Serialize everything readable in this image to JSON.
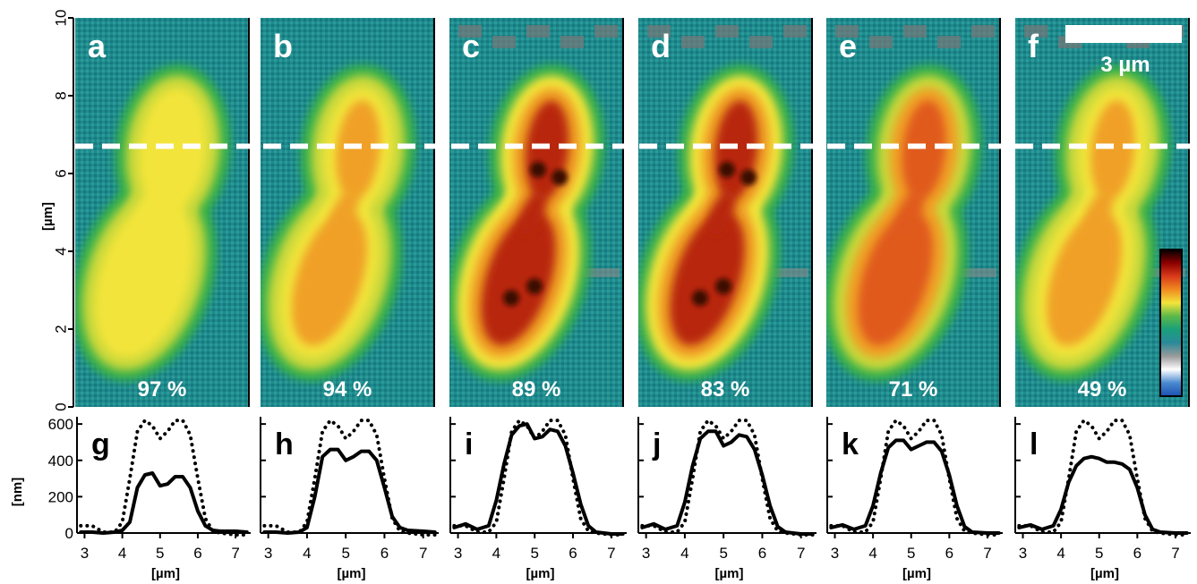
{
  "figure": {
    "image_axis": {
      "label": "[µm]",
      "ticks": [
        "0",
        "2",
        "4",
        "6",
        "8",
        "10"
      ],
      "ylim": [
        0,
        10
      ]
    },
    "profile_axis": {
      "ylabel": "[nm]",
      "yticks": [
        "0",
        "200",
        "400",
        "600"
      ],
      "ylim": [
        0,
        640
      ],
      "xlabel": "[µm]",
      "xticks": [
        "3",
        "4",
        "5",
        "6",
        "7"
      ],
      "xlim": [
        2.8,
        7.4
      ]
    },
    "scale_bar_label": "3 µm",
    "cut_line_y_um": 6.7,
    "colorbar": {
      "colors": [
        "#000000",
        "#8b0000",
        "#d83a1a",
        "#f08a20",
        "#f2e43a",
        "#5bb84a",
        "#1aa07a",
        "#2a8a9a",
        "#9a9a9a",
        "#ffffff",
        "#4a8ad0",
        "#1a50b0"
      ]
    }
  },
  "panels": [
    {
      "letter": "a",
      "percent": "97 %",
      "intensity": 0.25
    },
    {
      "letter": "b",
      "percent": "94 %",
      "intensity": 0.45
    },
    {
      "letter": "c",
      "percent": "89 %",
      "intensity": 1.0
    },
    {
      "letter": "d",
      "percent": "83 %",
      "intensity": 0.9
    },
    {
      "letter": "e",
      "percent": "71 %",
      "intensity": 0.7
    },
    {
      "letter": "f",
      "percent": "49 %",
      "intensity": 0.35
    }
  ],
  "chart_data": [
    {
      "type": "line",
      "letter": "g",
      "xlabel": "[µm]",
      "ylabel": "[nm]",
      "xlim": [
        2.8,
        7.4
      ],
      "ylim": [
        0,
        640
      ],
      "series": [
        {
          "style": "dotted",
          "x": [
            2.9,
            3.2,
            3.5,
            3.8,
            4.0,
            4.2,
            4.4,
            4.6,
            4.8,
            5.0,
            5.2,
            5.4,
            5.6,
            5.8,
            6.0,
            6.2,
            6.4,
            6.6,
            7.0,
            7.3
          ],
          "y": [
            40,
            40,
            5,
            5,
            60,
            300,
            560,
            620,
            590,
            520,
            560,
            620,
            620,
            540,
            300,
            80,
            10,
            0,
            -10,
            -10
          ]
        },
        {
          "style": "solid",
          "x": [
            2.9,
            3.2,
            3.5,
            3.8,
            4.0,
            4.2,
            4.4,
            4.6,
            4.8,
            5.0,
            5.2,
            5.4,
            5.6,
            5.8,
            6.0,
            6.2,
            6.4,
            6.6,
            7.0,
            7.3
          ],
          "y": [
            5,
            5,
            0,
            5,
            15,
            60,
            250,
            320,
            330,
            260,
            270,
            310,
            310,
            250,
            120,
            40,
            15,
            10,
            10,
            5
          ]
        }
      ]
    },
    {
      "type": "line",
      "letter": "h",
      "xlabel": "[µm]",
      "ylabel": "[nm]",
      "xlim": [
        2.8,
        7.4
      ],
      "ylim": [
        0,
        640
      ],
      "series": [
        {
          "style": "dotted",
          "x": [
            2.9,
            3.2,
            3.5,
            3.8,
            4.0,
            4.2,
            4.4,
            4.6,
            4.8,
            5.0,
            5.2,
            5.4,
            5.6,
            5.8,
            6.0,
            6.2,
            6.4,
            6.6,
            7.0,
            7.3
          ],
          "y": [
            40,
            40,
            5,
            5,
            60,
            300,
            560,
            620,
            590,
            520,
            560,
            620,
            620,
            540,
            300,
            80,
            10,
            0,
            -10,
            -10
          ]
        },
        {
          "style": "solid",
          "x": [
            2.9,
            3.2,
            3.5,
            3.8,
            4.0,
            4.2,
            4.4,
            4.6,
            4.8,
            5.0,
            5.2,
            5.4,
            5.6,
            5.8,
            6.0,
            6.2,
            6.4,
            6.6,
            7.0,
            7.3
          ],
          "y": [
            5,
            5,
            0,
            5,
            30,
            200,
            420,
            460,
            460,
            400,
            420,
            450,
            450,
            400,
            250,
            90,
            30,
            15,
            10,
            5
          ]
        }
      ]
    },
    {
      "type": "line",
      "letter": "i",
      "xlabel": "[µm]",
      "ylabel": "[nm]",
      "xlim": [
        2.8,
        7.4
      ],
      "ylim": [
        0,
        640
      ],
      "series": [
        {
          "style": "dotted",
          "x": [
            2.9,
            3.2,
            3.5,
            3.8,
            4.0,
            4.2,
            4.4,
            4.6,
            4.8,
            5.0,
            5.2,
            5.4,
            5.6,
            5.8,
            6.0,
            6.2,
            6.4,
            6.6,
            7.0,
            7.3
          ],
          "y": [
            40,
            40,
            5,
            5,
            60,
            300,
            560,
            620,
            590,
            520,
            560,
            620,
            620,
            540,
            300,
            80,
            10,
            0,
            -10,
            -10
          ]
        },
        {
          "style": "solid",
          "x": [
            2.9,
            3.2,
            3.5,
            3.8,
            4.0,
            4.2,
            4.4,
            4.6,
            4.8,
            5.0,
            5.2,
            5.4,
            5.6,
            5.8,
            6.0,
            6.2,
            6.4,
            6.6,
            7.0,
            7.3
          ],
          "y": [
            30,
            50,
            20,
            40,
            180,
            380,
            540,
            590,
            600,
            520,
            530,
            570,
            560,
            480,
            330,
            160,
            40,
            5,
            -5,
            -5
          ]
        }
      ]
    },
    {
      "type": "line",
      "letter": "j",
      "xlabel": "[µm]",
      "ylabel": "[nm]",
      "xlim": [
        2.8,
        7.4
      ],
      "ylim": [
        0,
        640
      ],
      "series": [
        {
          "style": "dotted",
          "x": [
            2.9,
            3.2,
            3.5,
            3.8,
            4.0,
            4.2,
            4.4,
            4.6,
            4.8,
            5.0,
            5.2,
            5.4,
            5.6,
            5.8,
            6.0,
            6.2,
            6.4,
            6.6,
            7.0,
            7.3
          ],
          "y": [
            40,
            40,
            5,
            5,
            60,
            300,
            560,
            620,
            590,
            520,
            560,
            620,
            620,
            540,
            300,
            80,
            10,
            0,
            -10,
            -10
          ]
        },
        {
          "style": "solid",
          "x": [
            2.9,
            3.2,
            3.5,
            3.8,
            4.0,
            4.2,
            4.4,
            4.6,
            4.8,
            5.0,
            5.2,
            5.4,
            5.6,
            5.8,
            6.0,
            6.2,
            6.4,
            6.6,
            7.0,
            7.3
          ],
          "y": [
            30,
            50,
            20,
            40,
            170,
            370,
            520,
            560,
            560,
            480,
            500,
            540,
            530,
            460,
            320,
            150,
            35,
            5,
            -5,
            -5
          ]
        }
      ]
    },
    {
      "type": "line",
      "letter": "k",
      "xlabel": "[µm]",
      "ylabel": "[nm]",
      "xlim": [
        2.8,
        7.4
      ],
      "ylim": [
        0,
        640
      ],
      "series": [
        {
          "style": "dotted",
          "x": [
            2.9,
            3.2,
            3.5,
            3.8,
            4.0,
            4.2,
            4.4,
            4.6,
            4.8,
            5.0,
            5.2,
            5.4,
            5.6,
            5.8,
            6.0,
            6.2,
            6.4,
            6.6,
            7.0,
            7.3
          ],
          "y": [
            40,
            40,
            5,
            5,
            60,
            300,
            560,
            620,
            590,
            520,
            560,
            620,
            620,
            540,
            300,
            80,
            10,
            0,
            -10,
            -10
          ]
        },
        {
          "style": "solid",
          "x": [
            2.9,
            3.2,
            3.5,
            3.8,
            4.0,
            4.2,
            4.4,
            4.6,
            4.8,
            5.0,
            5.2,
            5.4,
            5.6,
            5.8,
            6.0,
            6.2,
            6.4,
            6.6,
            7.0,
            7.3
          ],
          "y": [
            30,
            45,
            20,
            40,
            150,
            330,
            470,
            510,
            510,
            460,
            480,
            500,
            500,
            450,
            320,
            150,
            35,
            5,
            0,
            0
          ]
        }
      ]
    },
    {
      "type": "line",
      "letter": "l",
      "xlabel": "[µm]",
      "ylabel": "[nm]",
      "xlim": [
        2.8,
        7.4
      ],
      "ylim": [
        0,
        640
      ],
      "series": [
        {
          "style": "dotted",
          "x": [
            2.9,
            3.2,
            3.5,
            3.8,
            4.0,
            4.2,
            4.4,
            4.6,
            4.8,
            5.0,
            5.2,
            5.4,
            5.6,
            5.8,
            6.0,
            6.2,
            6.4,
            6.6,
            7.0,
            7.3
          ],
          "y": [
            40,
            40,
            5,
            5,
            60,
            300,
            560,
            620,
            590,
            520,
            560,
            620,
            620,
            540,
            300,
            80,
            10,
            0,
            -10,
            -10
          ]
        },
        {
          "style": "solid",
          "x": [
            2.9,
            3.2,
            3.5,
            3.8,
            4.0,
            4.2,
            4.4,
            4.6,
            4.8,
            5.0,
            5.2,
            5.4,
            5.6,
            5.8,
            6.0,
            6.2,
            6.4,
            6.6,
            7.0,
            7.3
          ],
          "y": [
            30,
            45,
            20,
            40,
            130,
            280,
            370,
            410,
            420,
            410,
            390,
            390,
            380,
            350,
            250,
            100,
            20,
            5,
            0,
            0
          ]
        }
      ]
    }
  ]
}
